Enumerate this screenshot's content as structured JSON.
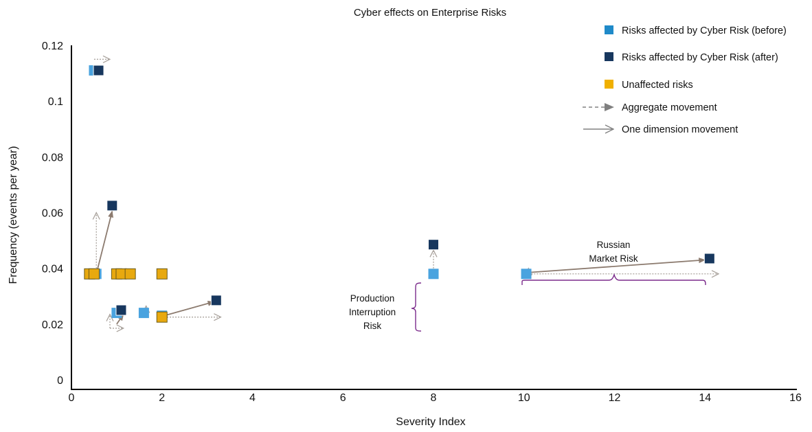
{
  "chart_data": {
    "type": "scatter",
    "title": "Cyber effects on Enterprise Risks",
    "xlabel": "Severity Index",
    "ylabel": "Frequency (events per year)",
    "xlim": [
      0,
      16
    ],
    "ylim": [
      0,
      0.12
    ],
    "xticks": [
      0,
      2,
      4,
      6,
      8,
      10,
      12,
      14,
      16
    ],
    "xtick_labels": [
      "0",
      "2",
      "4",
      "6",
      "8",
      "10",
      "12",
      "14",
      "16"
    ],
    "yticks": [
      0,
      0.02,
      0.04,
      0.06,
      0.08,
      0.1,
      0.12
    ],
    "ytick_labels": [
      "0",
      "0.02",
      "0.04",
      "0.06",
      "0.08",
      "0.1",
      "0.12"
    ],
    "grid": false,
    "legend_position": "top-right",
    "colors": {
      "before": "#4aa3df",
      "after": "#17375e",
      "unaffected": "#e8a90f",
      "arrow": "#8c7b6f",
      "bracket": "#7b2b8b"
    },
    "legend": [
      {
        "label": "Risks affected by Cyber Risk (before)",
        "marker": "square",
        "color": "#1f8ac9"
      },
      {
        "label": "Risks affected by Cyber Risk (after)",
        "marker": "square",
        "color": "#17375e"
      },
      {
        "label": "Unaffected risks",
        "marker": "square",
        "color": "#f0b000"
      },
      {
        "label": "Aggregate movement",
        "marker": "dashed-arrow",
        "color": "#8a8a8a"
      },
      {
        "label": "One dimension movement",
        "marker": "open-arrow",
        "color": "#8a8a8a"
      }
    ],
    "series": [
      {
        "name": "Risks affected by Cyber Risk (before)",
        "points": [
          {
            "x": 0.5,
            "y": 0.111
          },
          {
            "x": 0.55,
            "y": 0.038
          },
          {
            "x": 1.0,
            "y": 0.024
          },
          {
            "x": 1.6,
            "y": 0.024
          },
          {
            "x": 2.0,
            "y": 0.023
          },
          {
            "x": 8.0,
            "y": 0.038
          },
          {
            "x": 10.05,
            "y": 0.038
          }
        ]
      },
      {
        "name": "Risks affected by Cyber Risk (after)",
        "points": [
          {
            "x": 0.6,
            "y": 0.111
          },
          {
            "x": 0.9,
            "y": 0.0625
          },
          {
            "x": 1.1,
            "y": 0.025
          },
          {
            "x": 3.2,
            "y": 0.0285
          },
          {
            "x": 8.0,
            "y": 0.0485
          },
          {
            "x": 14.1,
            "y": 0.0435
          }
        ]
      },
      {
        "name": "Unaffected risks",
        "points": [
          {
            "x": 0.4,
            "y": 0.038
          },
          {
            "x": 0.5,
            "y": 0.038
          },
          {
            "x": 1.0,
            "y": 0.038
          },
          {
            "x": 1.1,
            "y": 0.038
          },
          {
            "x": 1.3,
            "y": 0.038
          },
          {
            "x": 2.0,
            "y": 0.038
          },
          {
            "x": 2.0,
            "y": 0.0225
          }
        ]
      }
    ],
    "movements": [
      {
        "kind": "aggregate",
        "from": [
          0.55,
          0.038
        ],
        "to": [
          0.9,
          0.0605
        ]
      },
      {
        "kind": "one-dimension",
        "from": [
          0.55,
          0.038
        ],
        "to": [
          0.55,
          0.06
        ]
      },
      {
        "kind": "one-dimension",
        "from": [
          0.5,
          0.115
        ],
        "to": [
          0.85,
          0.115
        ]
      },
      {
        "kind": "aggregate",
        "from": [
          1.0,
          0.02
        ],
        "to": [
          1.15,
          0.0235
        ]
      },
      {
        "kind": "one-dimension",
        "from": [
          0.85,
          0.0185
        ],
        "to": [
          0.85,
          0.0235
        ]
      },
      {
        "kind": "one-dimension",
        "from": [
          0.85,
          0.0185
        ],
        "to": [
          1.15,
          0.0185
        ]
      },
      {
        "kind": "one-dimension",
        "from": [
          1.65,
          0.0225
        ],
        "to": [
          1.65,
          0.0265
        ]
      },
      {
        "kind": "aggregate",
        "from": [
          2.05,
          0.023
        ],
        "to": [
          3.15,
          0.028
        ]
      },
      {
        "kind": "one-dimension",
        "from": [
          2.05,
          0.0225
        ],
        "to": [
          3.3,
          0.0225
        ]
      },
      {
        "kind": "one-dimension",
        "from": [
          8.0,
          0.038
        ],
        "to": [
          8.0,
          0.0465
        ]
      },
      {
        "kind": "aggregate",
        "from": [
          10.1,
          0.0385
        ],
        "to": [
          14.0,
          0.043
        ]
      },
      {
        "kind": "one-dimension",
        "from": [
          10.1,
          0.038
        ],
        "to": [
          14.3,
          0.038
        ]
      },
      {
        "kind": "one-dimension",
        "from": [
          10.1,
          0.0375
        ],
        "to": [
          10.1,
          0.04
        ]
      }
    ],
    "annotations": [
      {
        "id": "production",
        "lines": [
          "Production",
          "Interruption",
          "Risk"
        ]
      },
      {
        "id": "russian",
        "lines": [
          "Russian",
          "Market Risk"
        ]
      }
    ]
  }
}
